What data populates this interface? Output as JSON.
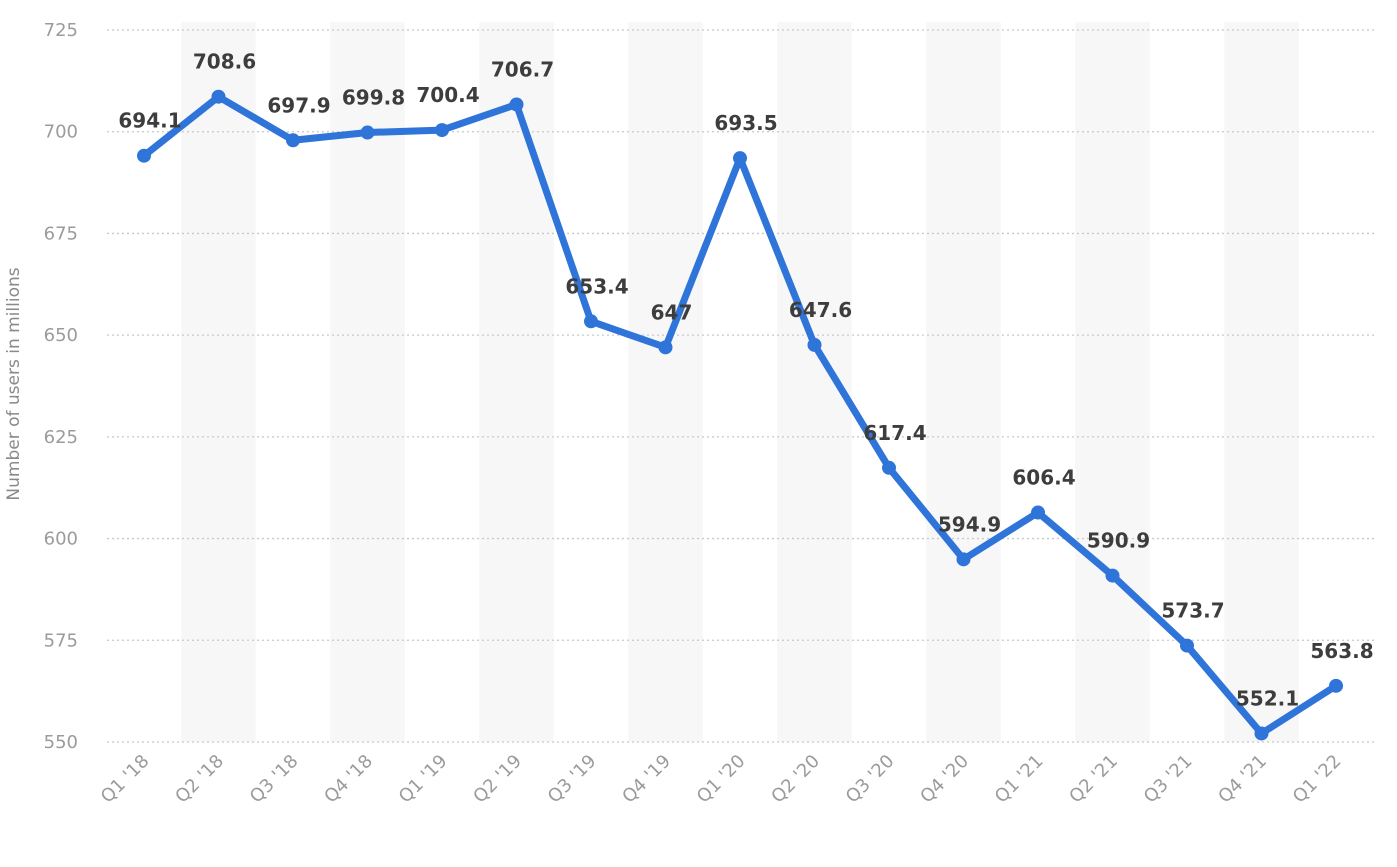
{
  "chart_data": {
    "type": "line",
    "title": "",
    "xlabel": "",
    "ylabel": "Number of users in millions",
    "categories": [
      "Q1 '18",
      "Q2 '18",
      "Q3 '18",
      "Q4 '18",
      "Q1 '19",
      "Q2 '19",
      "Q3 '19",
      "Q4 '19",
      "Q1 '20",
      "Q2 '20",
      "Q3 '20",
      "Q4 '20",
      "Q1 '21",
      "Q2 '21",
      "Q3 '21",
      "Q4 '21",
      "Q1 '22"
    ],
    "series": [
      {
        "values": [
          694.1,
          708.6,
          697.9,
          699.8,
          700.4,
          706.7,
          653.4,
          647,
          693.5,
          647.6,
          617.4,
          594.9,
          606.4,
          590.9,
          573.7,
          552.1,
          563.8
        ],
        "color": "#2f74d9"
      }
    ],
    "ylim": [
      550,
      725
    ],
    "yticks": [
      550,
      575,
      600,
      625,
      650,
      675,
      700,
      725
    ],
    "grid": true,
    "legend": "none",
    "colors": {
      "line": "#2f74d9",
      "band": "#f7f7f7",
      "grid": "#c8c8c8",
      "tick_text": "#9b9b9b",
      "label_text": "#3d3d3d"
    }
  }
}
